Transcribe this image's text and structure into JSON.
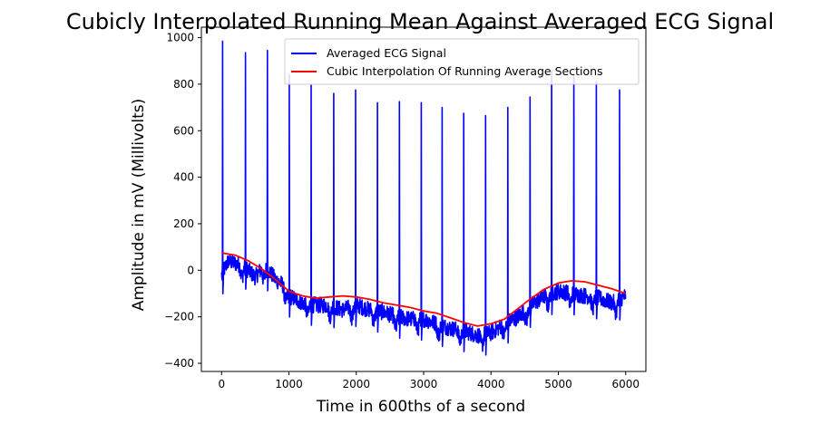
{
  "chart_data": {
    "type": "line",
    "title": "Cubicly Interpolated Running Mean Against Averaged ECG Signal",
    "xlabel": "Time in 600ths of a second",
    "ylabel": "Amplitude in mV (Millivolts)",
    "xlim": [
      -300,
      6300
    ],
    "ylim": [
      -435,
      1045
    ],
    "xticks": [
      0,
      1000,
      2000,
      3000,
      4000,
      5000,
      6000
    ],
    "yticks": [
      -400,
      -200,
      0,
      200,
      400,
      600,
      800,
      1000
    ],
    "legend_position": "top-right",
    "grid": false,
    "series": [
      {
        "name": "Averaged ECG Signal",
        "color": "#0000ff",
        "baseline": {
          "x": [
            0,
            100,
            200,
            300,
            400,
            500,
            600,
            700,
            800,
            900,
            1000,
            1200,
            1400,
            1600,
            1800,
            2000,
            2200,
            2400,
            2600,
            2800,
            3000,
            3200,
            3400,
            3600,
            3800,
            4000,
            4200,
            4400,
            4600,
            4800,
            5000,
            5200,
            5400,
            5600,
            5800,
            6000
          ],
          "y": [
            -20,
            40,
            30,
            20,
            0,
            -30,
            10,
            0,
            -40,
            -60,
            -110,
            -140,
            -150,
            -150,
            -170,
            -150,
            -170,
            -180,
            -200,
            -210,
            -210,
            -230,
            -250,
            -260,
            -280,
            -270,
            -230,
            -200,
            -150,
            -110,
            -90,
            -100,
            -110,
            -120,
            -140,
            -110
          ]
        },
        "peaks": [
          {
            "x": 15,
            "y": 985
          },
          {
            "x": 355,
            "y": 935
          },
          {
            "x": 680,
            "y": 945
          },
          {
            "x": 1005,
            "y": 840
          },
          {
            "x": 1330,
            "y": 795
          },
          {
            "x": 1665,
            "y": 760
          },
          {
            "x": 1990,
            "y": 775
          },
          {
            "x": 2315,
            "y": 720
          },
          {
            "x": 2640,
            "y": 725
          },
          {
            "x": 2965,
            "y": 720
          },
          {
            "x": 3275,
            "y": 700
          },
          {
            "x": 3595,
            "y": 675
          },
          {
            "x": 3920,
            "y": 665
          },
          {
            "x": 4250,
            "y": 700
          },
          {
            "x": 4580,
            "y": 745
          },
          {
            "x": 4900,
            "y": 860
          },
          {
            "x": 5230,
            "y": 835
          },
          {
            "x": 5565,
            "y": 810
          },
          {
            "x": 5910,
            "y": 775
          }
        ]
      },
      {
        "name": "Cubic Interpolation Of Running Average Sections",
        "color": "#ff0000",
        "x": [
          0,
          200,
          400,
          600,
          800,
          1000,
          1200,
          1400,
          1600,
          1800,
          2000,
          2200,
          2400,
          2600,
          2800,
          3000,
          3200,
          3400,
          3600,
          3800,
          4000,
          4200,
          4400,
          4600,
          4800,
          5000,
          5200,
          5400,
          5600,
          5800,
          6000
        ],
        "y": [
          75,
          65,
          40,
          5,
          -40,
          -90,
          -110,
          -120,
          -115,
          -110,
          -115,
          -125,
          -140,
          -150,
          -160,
          -175,
          -185,
          -205,
          -225,
          -240,
          -230,
          -210,
          -165,
          -120,
          -80,
          -55,
          -45,
          -50,
          -65,
          -80,
          -100
        ]
      }
    ]
  }
}
